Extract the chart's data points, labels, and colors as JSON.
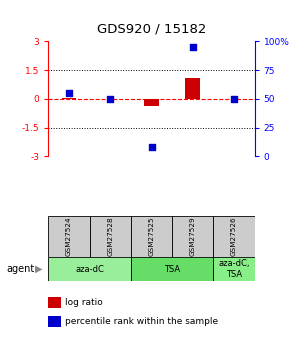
{
  "title": "GDS920 / 15182",
  "samples": [
    "GSM27524",
    "GSM27528",
    "GSM27525",
    "GSM27529",
    "GSM27526"
  ],
  "log_ratios": [
    0.05,
    0.0,
    -0.35,
    1.1,
    0.0
  ],
  "percentile_ranks": [
    55.0,
    50.0,
    8.0,
    95.0,
    50.0
  ],
  "agents": [
    {
      "label": "aza-dC",
      "start": 0,
      "end": 2,
      "color": "#99ee99"
    },
    {
      "label": "TSA",
      "start": 2,
      "end": 4,
      "color": "#66dd66"
    },
    {
      "label": "aza-dC,\nTSA",
      "start": 4,
      "end": 5,
      "color": "#88ee88"
    }
  ],
  "ylim_left": [
    -3,
    3
  ],
  "yticks_left": [
    -3,
    -1.5,
    0,
    1.5,
    3
  ],
  "ytick_labels_left": [
    "-3",
    "-1.5",
    "0",
    "1.5",
    "3"
  ],
  "yticks_right_pct": [
    0,
    25,
    50,
    75,
    100
  ],
  "ytick_labels_right": [
    "0",
    "25",
    "50",
    "75",
    "100%"
  ],
  "bar_color": "#cc0000",
  "dot_color": "#0000cc",
  "bar_width": 0.35,
  "dot_size": 25,
  "legend_items": [
    {
      "color": "#cc0000",
      "label": "log ratio"
    },
    {
      "color": "#0000cc",
      "label": "percentile rank within the sample"
    }
  ],
  "sample_box_color": "#cccccc",
  "agent_label": "agent"
}
